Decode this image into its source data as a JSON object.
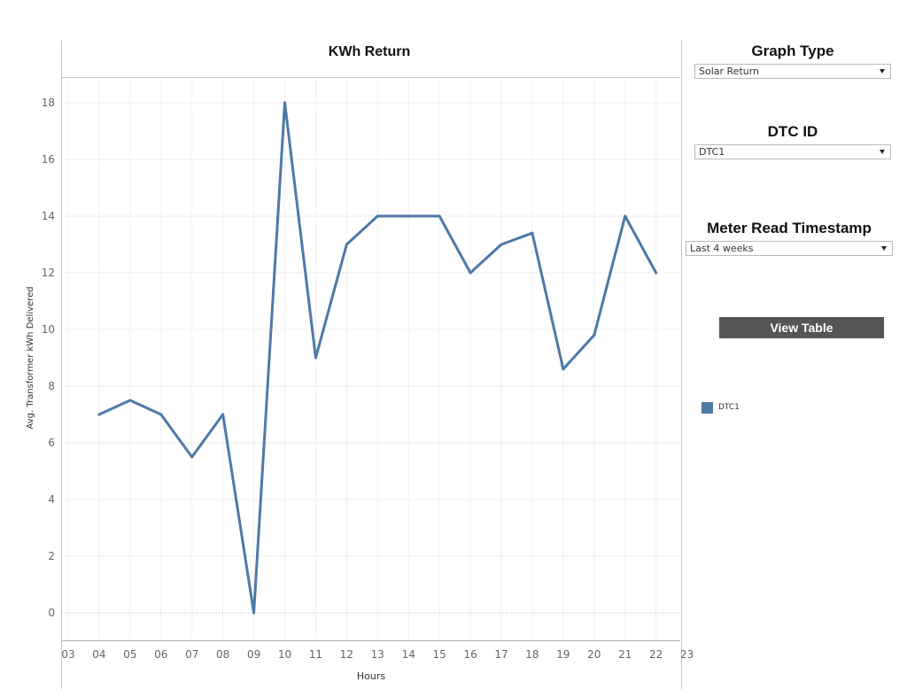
{
  "chart_data": {
    "type": "line",
    "title": "KWh Return",
    "xlabel": "Hours",
    "ylabel": "Avg. Transformer kWh Delivered",
    "x_ticks": [
      "03",
      "04",
      "05",
      "06",
      "07",
      "08",
      "09",
      "10",
      "11",
      "12",
      "13",
      "14",
      "15",
      "16",
      "17",
      "18",
      "19",
      "20",
      "21",
      "22",
      "23"
    ],
    "y_ticks": [
      0,
      2,
      4,
      6,
      8,
      10,
      12,
      14,
      16,
      18
    ],
    "ylim": [
      -1,
      19
    ],
    "xlim": [
      3,
      23
    ],
    "grid": true,
    "legend": "right",
    "series": [
      {
        "name": "DTC1",
        "color": "#4e79a7",
        "points": [
          {
            "x": "04",
            "y": 7
          },
          {
            "x": "05",
            "y": 7.5
          },
          {
            "x": "06",
            "y": 7
          },
          {
            "x": "07",
            "y": 5.5
          },
          {
            "x": "08",
            "y": 7
          },
          {
            "x": "09",
            "y": 0
          },
          {
            "x": "10",
            "y": 18
          },
          {
            "x": "11",
            "y": 9
          },
          {
            "x": "12",
            "y": 13
          },
          {
            "x": "13",
            "y": 14
          },
          {
            "x": "14",
            "y": 14
          },
          {
            "x": "15",
            "y": 14
          },
          {
            "x": "16",
            "y": 12
          },
          {
            "x": "17",
            "y": 13
          },
          {
            "x": "18",
            "y": 13.4
          },
          {
            "x": "19",
            "y": 8.6
          },
          {
            "x": "20",
            "y": 9.8
          },
          {
            "x": "21",
            "y": 14
          },
          {
            "x": "22",
            "y": 12
          }
        ]
      }
    ]
  },
  "filters": {
    "graph_type": {
      "label": "Graph Type",
      "value": "Solar Return"
    },
    "dtc_id": {
      "label": "DTC ID",
      "value": "DTC1"
    },
    "meter_read_timestamp": {
      "label": "Meter Read Timestamp",
      "value": "Last 4 weeks"
    }
  },
  "view_table_button": {
    "label": "View Table"
  },
  "legend": {
    "entries": [
      {
        "label": "DTC1",
        "color": "#4e79a7"
      }
    ]
  }
}
